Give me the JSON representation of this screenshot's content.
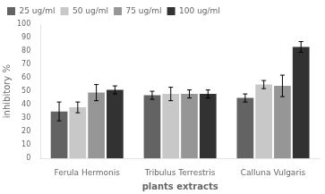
{
  "chart_data": {
    "type": "bar",
    "xlabel": "plants extracts",
    "ylabel": "inhibitory %",
    "categories": [
      "Ferula Hermonis",
      "Tribulus Terrestris",
      "Calluna Vulgaris"
    ],
    "series": [
      {
        "name": "25 ug/ml",
        "color": "#636363",
        "values": [
          35,
          47,
          45
        ],
        "errors": [
          7,
          3,
          3
        ]
      },
      {
        "name": "50 ug/ml",
        "color": "#c8c8c8",
        "values": [
          38,
          48,
          55
        ],
        "errors": [
          4,
          5,
          3
        ]
      },
      {
        "name": "75 ug/ml",
        "color": "#969696",
        "values": [
          49,
          48,
          54
        ],
        "errors": [
          6,
          3,
          8
        ]
      },
      {
        "name": "100 ug/ml",
        "color": "#323232",
        "values": [
          51,
          48,
          83
        ],
        "errors": [
          3,
          3,
          4
        ]
      }
    ],
    "ylim": [
      0,
      100
    ],
    "yticks": [
      0,
      10,
      20,
      30,
      40,
      50,
      60,
      70,
      80,
      90,
      100
    ],
    "grid": false,
    "legend": "upper left"
  }
}
